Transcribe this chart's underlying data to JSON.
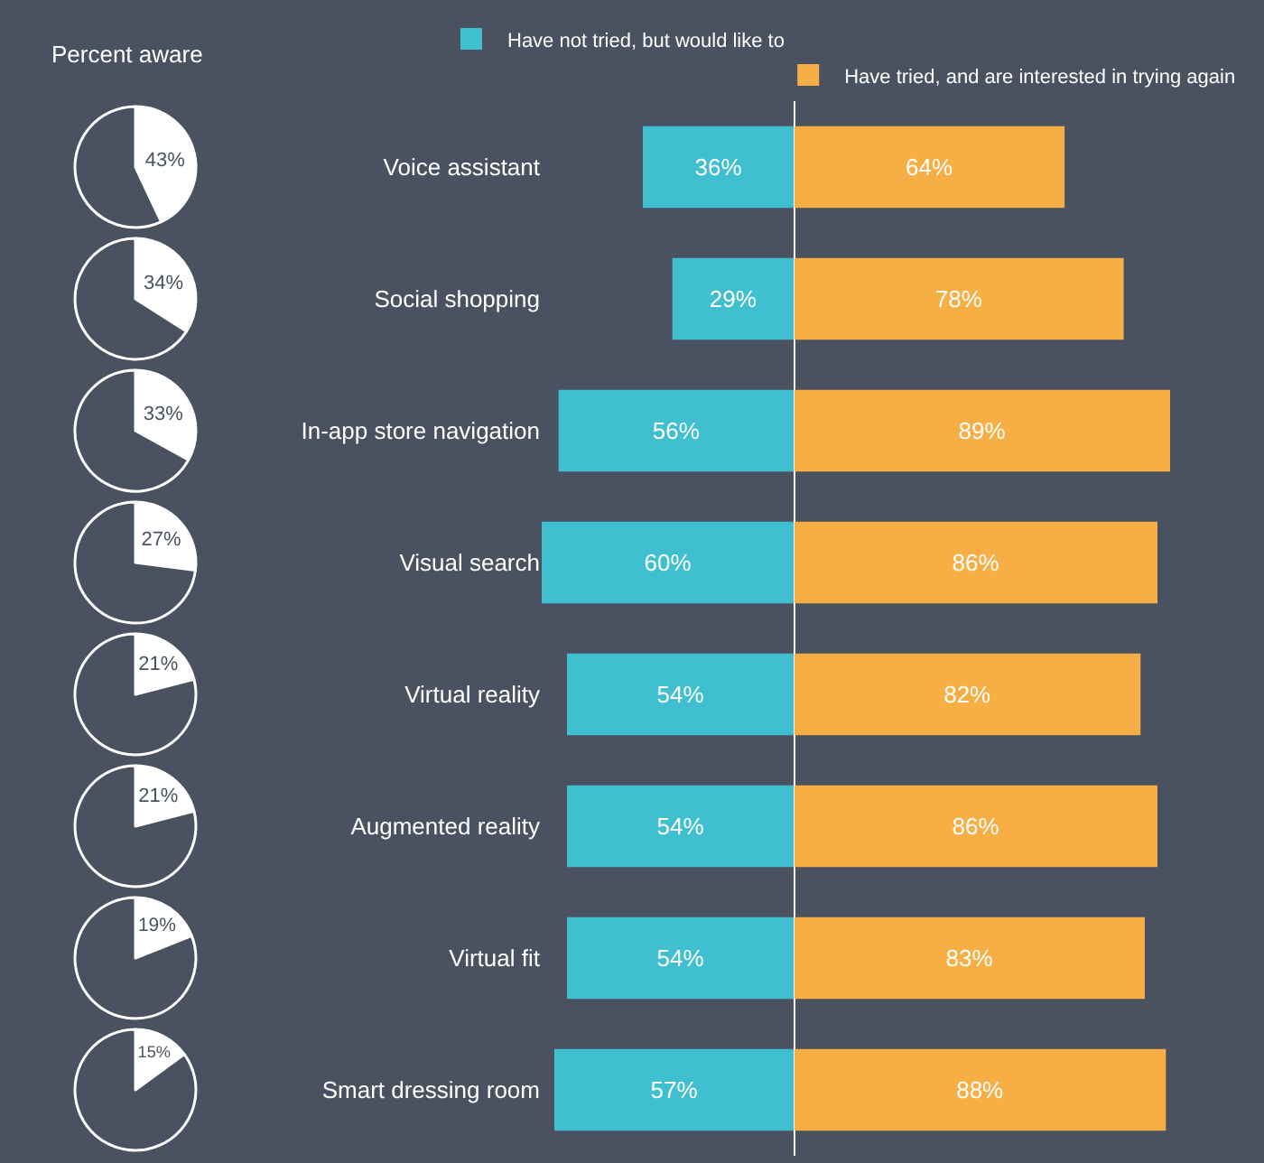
{
  "chart_data": [
    {
      "type": "bar",
      "orientation": "horizontal",
      "legend": "top",
      "xlim": [
        60,
        0
      ],
      "categories": [
        "Voice assistant",
        "Social shopping",
        "In-app store navigation",
        "Visual search",
        "Virtual reality",
        "Augmented reality",
        "Virtual fit",
        "Smart dressing room"
      ],
      "series": [
        {
          "name": "Have not tried, but would like to",
          "color": "#3fbfcf",
          "values": [
            36,
            29,
            56,
            60,
            54,
            54,
            54,
            57
          ],
          "value_labels": [
            "36%",
            "29%",
            "56%",
            "60%",
            "54%",
            "54%",
            "54%",
            "57%"
          ]
        }
      ]
    },
    {
      "type": "bar",
      "orientation": "horizontal",
      "legend": "top",
      "xlim": [
        0,
        89
      ],
      "categories": [
        null,
        null,
        null,
        null,
        null,
        null,
        null,
        null
      ],
      "series": [
        {
          "name": "Have tried, and are interested in trying again",
          "color": "#f7ae45",
          "values": [
            64,
            78,
            89,
            86,
            82,
            86,
            83,
            88
          ],
          "value_labels": [
            "64%",
            "78%",
            "89%",
            "86%",
            "82%",
            "86%",
            "83%",
            "88%"
          ]
        }
      ]
    },
    {
      "type": "pie",
      "title": "Percent aware",
      "categories": [
        null,
        null
      ],
      "values": [
        43,
        57
      ],
      "value_labels": [
        "43%",
        null
      ],
      "colors": [
        "#ffffff",
        "#4a5160"
      ]
    },
    {
      "type": "pie",
      "categories": [
        null,
        null
      ],
      "values": [
        34,
        66
      ],
      "value_labels": [
        "34%",
        null
      ],
      "colors": [
        "#ffffff",
        "#4a5160"
      ]
    },
    {
      "type": "pie",
      "categories": [
        null,
        null
      ],
      "values": [
        33,
        67
      ],
      "value_labels": [
        "33%",
        null
      ],
      "colors": [
        "#ffffff",
        "#4a5160"
      ]
    },
    {
      "type": "pie",
      "categories": [
        null,
        null
      ],
      "values": [
        27,
        73
      ],
      "value_labels": [
        "27%",
        null
      ],
      "colors": [
        "#ffffff",
        "#4a5160"
      ]
    },
    {
      "type": "pie",
      "categories": [
        null,
        null
      ],
      "values": [
        21,
        79
      ],
      "value_labels": [
        "21%",
        null
      ],
      "colors": [
        "#ffffff",
        "#4a5160"
      ]
    },
    {
      "type": "pie",
      "categories": [
        null,
        null
      ],
      "values": [
        21,
        79
      ],
      "value_labels": [
        "21%",
        null
      ],
      "colors": [
        "#ffffff",
        "#4a5160"
      ]
    },
    {
      "type": "pie",
      "categories": [
        null,
        null
      ],
      "values": [
        19,
        81
      ],
      "value_labels": [
        "19%",
        null
      ],
      "colors": [
        "#ffffff",
        "#4a5160"
      ]
    },
    {
      "type": "pie",
      "categories": [
        null,
        null
      ],
      "values": [
        15,
        85
      ],
      "value_labels": [
        "15%",
        null
      ],
      "colors": [
        "#ffffff",
        "#4a5160"
      ]
    }
  ]
}
